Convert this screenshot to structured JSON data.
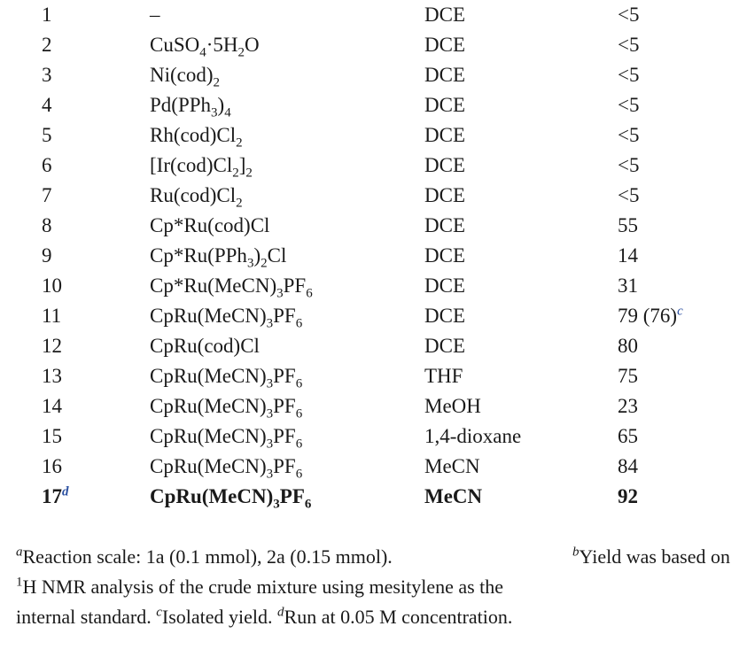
{
  "rows": [
    {
      "entry": "1",
      "entry_note": "",
      "catalyst": "–",
      "solvent": "DCE",
      "yield": "<5",
      "yield_note": "",
      "bold": false
    },
    {
      "entry": "2",
      "entry_note": "",
      "catalyst": "CuSO<sub>4</sub>·5H<sub>2</sub>O",
      "solvent": "DCE",
      "yield": "<5",
      "yield_note": "",
      "bold": false
    },
    {
      "entry": "3",
      "entry_note": "",
      "catalyst": "Ni(cod)<sub>2</sub>",
      "solvent": "DCE",
      "yield": "<5",
      "yield_note": "",
      "bold": false
    },
    {
      "entry": "4",
      "entry_note": "",
      "catalyst": "Pd(PPh<sub>3</sub>)<sub>4</sub>",
      "solvent": "DCE",
      "yield": "<5",
      "yield_note": "",
      "bold": false
    },
    {
      "entry": "5",
      "entry_note": "",
      "catalyst": "Rh(cod)Cl<sub>2</sub>",
      "solvent": "DCE",
      "yield": "<5",
      "yield_note": "",
      "bold": false
    },
    {
      "entry": "6",
      "entry_note": "",
      "catalyst": "[Ir(cod)Cl<sub>2</sub>]<sub>2</sub>",
      "solvent": "DCE",
      "yield": "<5",
      "yield_note": "",
      "bold": false
    },
    {
      "entry": "7",
      "entry_note": "",
      "catalyst": "Ru(cod)Cl<sub>2</sub>",
      "solvent": "DCE",
      "yield": "<5",
      "yield_note": "",
      "bold": false
    },
    {
      "entry": "8",
      "entry_note": "",
      "catalyst": "Cp*Ru(cod)Cl",
      "solvent": "DCE",
      "yield": "55",
      "yield_note": "",
      "bold": false
    },
    {
      "entry": "9",
      "entry_note": "",
      "catalyst": "Cp*Ru(PPh<sub>3</sub>)<sub>2</sub>Cl",
      "solvent": "DCE",
      "yield": "14",
      "yield_note": "",
      "bold": false
    },
    {
      "entry": "10",
      "entry_note": "",
      "catalyst": "Cp*Ru(MeCN)<sub>3</sub>PF<sub>6</sub>",
      "solvent": "DCE",
      "yield": "31",
      "yield_note": "",
      "bold": false
    },
    {
      "entry": "11",
      "entry_note": "",
      "catalyst": "CpRu(MeCN)<sub>3</sub>PF<sub>6</sub>",
      "solvent": "DCE",
      "yield": "79 (76)",
      "yield_note": "c",
      "bold": false
    },
    {
      "entry": "12",
      "entry_note": "",
      "catalyst": "CpRu(cod)Cl",
      "solvent": "DCE",
      "yield": "80",
      "yield_note": "",
      "bold": false
    },
    {
      "entry": "13",
      "entry_note": "",
      "catalyst": "CpRu(MeCN)<sub>3</sub>PF<sub>6</sub>",
      "solvent": "THF",
      "yield": "75",
      "yield_note": "",
      "bold": false
    },
    {
      "entry": "14",
      "entry_note": "",
      "catalyst": "CpRu(MeCN)<sub>3</sub>PF<sub>6</sub>",
      "solvent": "MeOH",
      "yield": "23",
      "yield_note": "",
      "bold": false
    },
    {
      "entry": "15",
      "entry_note": "",
      "catalyst": "CpRu(MeCN)<sub>3</sub>PF<sub>6</sub>",
      "solvent": "1,4-dioxane",
      "yield": "65",
      "yield_note": "",
      "bold": false
    },
    {
      "entry": "16",
      "entry_note": "",
      "catalyst": "CpRu(MeCN)<sub>3</sub>PF<sub>6</sub>",
      "solvent": "MeCN",
      "yield": "84",
      "yield_note": "",
      "bold": false
    },
    {
      "entry": "17",
      "entry_note": "d",
      "catalyst": "CpRu(MeCN)<sub>3</sub>PF<sub>6</sub>",
      "solvent": "MeCN",
      "yield": "92",
      "yield_note": "",
      "bold": true
    }
  ],
  "footnotes": {
    "a_mark": "a",
    "a_text": "Reaction scale: 1a (0.1 mmol), 2a (0.15 mmol).",
    "b_mark": "b",
    "b_text_line1": "Yield was based on",
    "line2_sup": "1",
    "line2_text": "H NMR analysis of the crude mixture using mesitylene as the",
    "line3_text": "internal standard.",
    "c_mark": "c",
    "c_text": "Isolated yield.",
    "d_mark": "d",
    "d_text": "Run at 0.05 M concentration."
  },
  "colors": {
    "text": "#1a1a1a",
    "note_mark": "#2a4fa0",
    "background": "#ffffff"
  }
}
